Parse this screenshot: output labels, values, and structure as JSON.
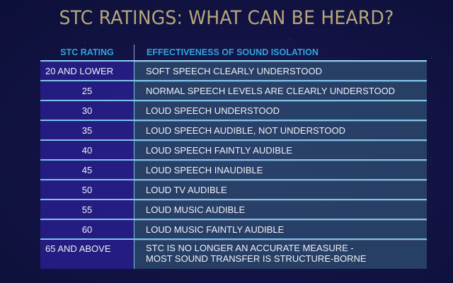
{
  "title": "STC RATINGS: WHAT CAN BE HEARD?",
  "table": {
    "headers": [
      "STC RATING",
      "EFFECTIVENESS OF SOUND ISOLATION"
    ],
    "rows": [
      {
        "rating": "20 AND LOWER",
        "effect": "SOFT SPEECH CLEARLY UNDERSTOOD"
      },
      {
        "rating": "25",
        "effect": "NORMAL SPEECH LEVELS ARE CLEARLY UNDERSTOOD"
      },
      {
        "rating": "30",
        "effect": "LOUD SPEECH UNDERSTOOD"
      },
      {
        "rating": "35",
        "effect": "LOUD SPEECH AUDIBLE, NOT UNDERSTOOD"
      },
      {
        "rating": "40",
        "effect": "LOUD SPEECH FAINTLY AUDIBLE"
      },
      {
        "rating": "45",
        "effect": "LOUD SPEECH INAUDIBLE"
      },
      {
        "rating": "50",
        "effect": "LOUD TV AUDIBLE"
      },
      {
        "rating": "55",
        "effect": "LOUD MUSIC AUDIBLE"
      },
      {
        "rating": "60",
        "effect": "LOUD MUSIC FAINTLY AUDIBLE"
      },
      {
        "rating": "65 AND ABOVE",
        "effect_lines": [
          "STC IS NO LONGER AN ACCURATE MEASURE -",
          "MOST SOUND TRANSFER IS STRUCTURE-BORNE"
        ]
      }
    ]
  },
  "colors": {
    "title": "#b7a77a",
    "header": "#2fa4dd",
    "rating_cell": "#281e8c",
    "effect_cell": "#2d4b6e",
    "row_line": "#7fc2e8",
    "background": "#0c0f38"
  }
}
